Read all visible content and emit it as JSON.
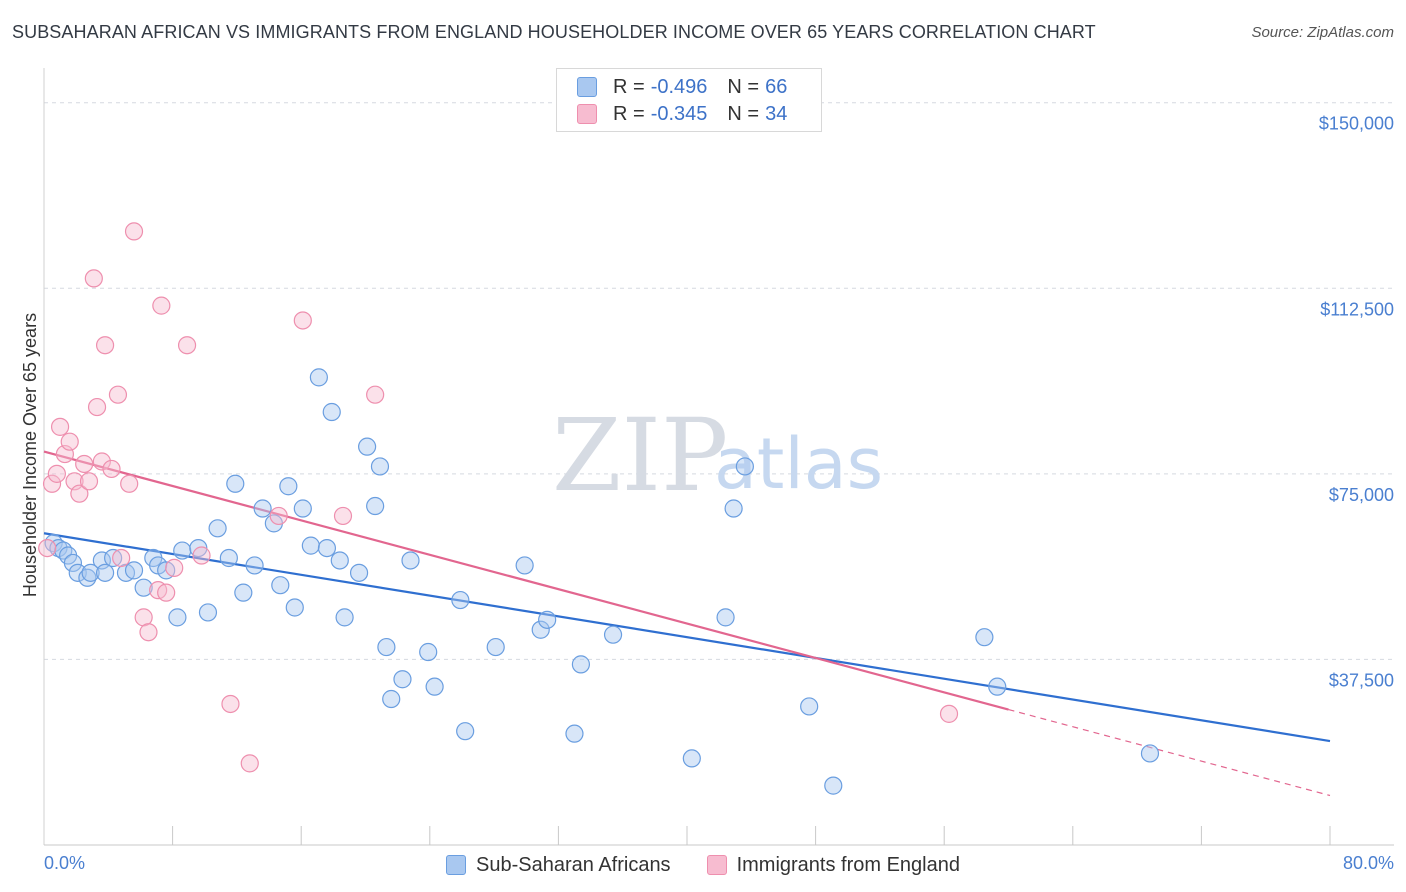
{
  "title": "SUBSAHARAN AFRICAN VS IMMIGRANTS FROM ENGLAND HOUSEHOLDER INCOME OVER 65 YEARS CORRELATION CHART",
  "source": "Source: ZipAtlas.com",
  "watermark": {
    "zip": "ZIP",
    "atlas": "atlas"
  },
  "colors": {
    "blue_fill": "#a9c8f0",
    "blue_stroke": "#6a9ee0",
    "blue_line": "#2f6fd0",
    "pink_fill": "#f7bcd0",
    "pink_stroke": "#ee8fae",
    "pink_line": "#e2668f",
    "grid": "#d5d9e0",
    "axis_text": "#4a7fd0"
  },
  "legend_top": [
    {
      "series": "Sub-Saharan Africans",
      "r_label": "R =",
      "r": "-0.496",
      "n_label": "N =",
      "n": "66"
    },
    {
      "series": "Immigrants from England",
      "r_label": "R =",
      "r": "-0.345",
      "n_label": "N =",
      "n": "34"
    }
  ],
  "legend_bottom": [
    "Sub-Saharan Africans",
    "Immigrants from England"
  ],
  "chart_data": {
    "type": "scatter",
    "title": "SUBSAHARAN AFRICAN VS IMMIGRANTS FROM ENGLAND HOUSEHOLDER INCOME OVER 65 YEARS CORRELATION CHART",
    "xlabel": "",
    "ylabel": "Householder Income Over 65 years",
    "xlim": [
      0,
      80
    ],
    "ylim": [
      0,
      155000
    ],
    "x_tick_labels": [
      "0.0%",
      "80.0%"
    ],
    "y_ticks": [
      37500,
      75000,
      112500,
      150000
    ],
    "y_tick_labels": [
      "$37,500",
      "$75,000",
      "$112,500",
      "$150,000"
    ],
    "series": [
      {
        "name": "Sub-Saharan Africans",
        "color": "blue",
        "trend": {
          "x0": 0,
          "y0": 63000,
          "x1": 80,
          "y1": 21000,
          "solid_to": 80
        },
        "points": [
          [
            0.6,
            61000
          ],
          [
            0.9,
            60000
          ],
          [
            1.2,
            59500
          ],
          [
            1.5,
            58500
          ],
          [
            1.8,
            57000
          ],
          [
            2.1,
            55000
          ],
          [
            2.7,
            54000
          ],
          [
            2.9,
            55000
          ],
          [
            3.6,
            57500
          ],
          [
            3.8,
            55000
          ],
          [
            4.3,
            58000
          ],
          [
            5.1,
            55000
          ],
          [
            5.6,
            55500
          ],
          [
            6.2,
            52000
          ],
          [
            6.8,
            58000
          ],
          [
            7.1,
            56500
          ],
          [
            7.6,
            55500
          ],
          [
            8.3,
            46000
          ],
          [
            8.6,
            59500
          ],
          [
            9.6,
            60000
          ],
          [
            10.2,
            47000
          ],
          [
            10.8,
            64000
          ],
          [
            11.5,
            58000
          ],
          [
            11.9,
            73000
          ],
          [
            12.4,
            51000
          ],
          [
            13.1,
            56500
          ],
          [
            13.6,
            68000
          ],
          [
            14.3,
            65000
          ],
          [
            14.7,
            52500
          ],
          [
            15.2,
            72500
          ],
          [
            15.6,
            48000
          ],
          [
            16.1,
            68000
          ],
          [
            16.6,
            60500
          ],
          [
            17.1,
            94500
          ],
          [
            17.6,
            60000
          ],
          [
            17.9,
            87500
          ],
          [
            18.4,
            57500
          ],
          [
            18.7,
            46000
          ],
          [
            19.6,
            55000
          ],
          [
            20.1,
            80500
          ],
          [
            20.6,
            68500
          ],
          [
            20.9,
            76500
          ],
          [
            21.3,
            40000
          ],
          [
            21.6,
            29500
          ],
          [
            22.3,
            33500
          ],
          [
            22.8,
            57500
          ],
          [
            23.9,
            39000
          ],
          [
            24.3,
            32000
          ],
          [
            25.9,
            49500
          ],
          [
            26.2,
            23000
          ],
          [
            28.1,
            40000
          ],
          [
            29.9,
            56500
          ],
          [
            30.9,
            43500
          ],
          [
            31.3,
            45500
          ],
          [
            33.0,
            22500
          ],
          [
            33.4,
            36500
          ],
          [
            35.4,
            42500
          ],
          [
            40.3,
            17500
          ],
          [
            42.4,
            46000
          ],
          [
            42.9,
            68000
          ],
          [
            43.6,
            76500
          ],
          [
            47.6,
            28000
          ],
          [
            49.1,
            12000
          ],
          [
            58.5,
            42000
          ],
          [
            59.3,
            32000
          ],
          [
            68.8,
            18500
          ]
        ]
      },
      {
        "name": "Immigrants from England",
        "color": "pink",
        "trend": {
          "x0": 0,
          "y0": 79500,
          "x1": 80,
          "y1": 10000,
          "solid_to": 60
        },
        "points": [
          [
            0.2,
            60000
          ],
          [
            0.5,
            73000
          ],
          [
            0.8,
            75000
          ],
          [
            1.0,
            84500
          ],
          [
            1.3,
            79000
          ],
          [
            1.6,
            81500
          ],
          [
            1.9,
            73500
          ],
          [
            2.2,
            71000
          ],
          [
            2.5,
            77000
          ],
          [
            2.8,
            73500
          ],
          [
            3.1,
            114500
          ],
          [
            3.3,
            88500
          ],
          [
            3.8,
            101000
          ],
          [
            3.6,
            77500
          ],
          [
            4.2,
            76000
          ],
          [
            4.6,
            91000
          ],
          [
            4.8,
            58000
          ],
          [
            5.3,
            73000
          ],
          [
            5.6,
            124000
          ],
          [
            6.2,
            46000
          ],
          [
            6.5,
            43000
          ],
          [
            7.1,
            51500
          ],
          [
            7.6,
            51000
          ],
          [
            7.3,
            109000
          ],
          [
            8.1,
            56000
          ],
          [
            8.9,
            101000
          ],
          [
            9.8,
            58500
          ],
          [
            11.6,
            28500
          ],
          [
            12.8,
            16500
          ],
          [
            14.6,
            66500
          ],
          [
            16.1,
            106000
          ],
          [
            18.6,
            66500
          ],
          [
            20.6,
            91000
          ],
          [
            56.3,
            26500
          ]
        ]
      }
    ]
  }
}
